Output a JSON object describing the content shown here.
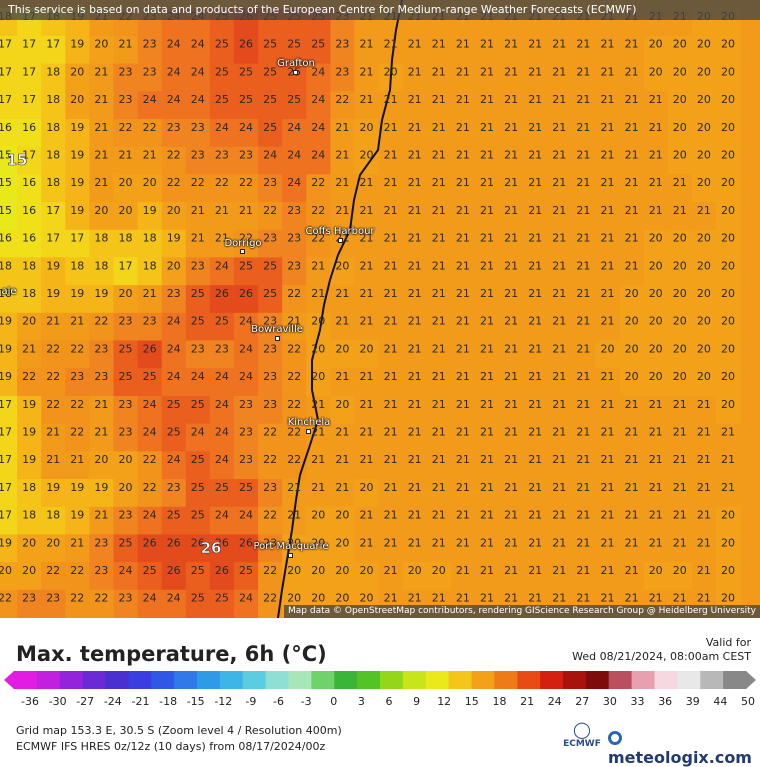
{
  "notice": "This service is based on data and products of the European Centre for Medium-range Weather Forecasts (ECMWF)",
  "attribution": "Map data © OpenStreetMap contributors, rendering GIScience Research Group @ Heidelberg University",
  "title": "Max. temperature, 6h (°C)",
  "valid_label": "Valid for",
  "valid_time": "Wed 08/21/2024, 08:00am CEST",
  "info_line1": "Grid map 153.3 E, 30.5 S (Zoom level 4 / Resolution 400m)",
  "info_line2": "ECMWF IFS HRES 0z/12z (10 days) from 08/17/2024/00z",
  "ecmwf_label": "ECMWF",
  "brand": "meteologix.com",
  "left_edge_label": "ale",
  "cities": [
    {
      "name": "Grafton"
    },
    {
      "name": "Dorrigo"
    },
    {
      "name": "Coffs Harbour"
    },
    {
      "name": "Bowraville"
    },
    {
      "name": "Kinchela"
    },
    {
      "name": "Port Macquarie"
    }
  ],
  "highlight_values": {
    "left": "15",
    "bottom": "26"
  },
  "legend": {
    "ticks": [
      "-36",
      "-30",
      "-27",
      "-24",
      "-21",
      "-18",
      "-15",
      "-12",
      "-9",
      "-6",
      "-3",
      "0",
      "3",
      "6",
      "9",
      "12",
      "15",
      "18",
      "21",
      "24",
      "27",
      "30",
      "33",
      "36",
      "39",
      "44",
      "50"
    ],
    "colors": [
      "#e31ce3",
      "#c31fe0",
      "#9424db",
      "#6c29d6",
      "#4a2fd1",
      "#3a3ee0",
      "#2f58e6",
      "#2f7ae8",
      "#2f9ae8",
      "#3db5e6",
      "#5ccde0",
      "#8fdfd4",
      "#a7e6b7",
      "#6fd26a",
      "#3ab53a",
      "#52c426",
      "#93d61a",
      "#c7e51a",
      "#eaea1a",
      "#f5c61a",
      "#f2a11a",
      "#ef7a18",
      "#e84c14",
      "#d3200f",
      "#a8140c",
      "#7f0c0c",
      "#b8505f",
      "#e8a0b0",
      "#f8d8e0",
      "#e8e8e8",
      "#b8b8b8",
      "#888888"
    ]
  },
  "grid": {
    "rows": [
      [
        18,
        17,
        18,
        19,
        21,
        22,
        23,
        24,
        24,
        25,
        26,
        25,
        25,
        25,
        23,
        21,
        21,
        21,
        21,
        21,
        21,
        21,
        21,
        21,
        21,
        21,
        21,
        21,
        21,
        20,
        20
      ],
      [
        17,
        17,
        17,
        19,
        20,
        21,
        23,
        24,
        24,
        25,
        26,
        25,
        25,
        25,
        23,
        21,
        21,
        21,
        21,
        21,
        21,
        21,
        21,
        21,
        21,
        21,
        21,
        20,
        20,
        20,
        20
      ],
      [
        17,
        17,
        18,
        20,
        21,
        23,
        23,
        24,
        24,
        25,
        25,
        25,
        25,
        24,
        23,
        21,
        20,
        21,
        21,
        21,
        21,
        21,
        21,
        21,
        21,
        21,
        21,
        20,
        20,
        20,
        20
      ],
      [
        17,
        17,
        18,
        20,
        21,
        23,
        24,
        24,
        24,
        25,
        25,
        25,
        25,
        24,
        22,
        21,
        21,
        21,
        21,
        21,
        21,
        21,
        21,
        21,
        21,
        21,
        21,
        21,
        20,
        20,
        20
      ],
      [
        16,
        16,
        18,
        19,
        21,
        22,
        22,
        23,
        23,
        24,
        24,
        25,
        24,
        24,
        21,
        20,
        21,
        21,
        21,
        21,
        21,
        21,
        21,
        21,
        21,
        21,
        21,
        21,
        20,
        20,
        20
      ],
      [
        15,
        17,
        18,
        19,
        21,
        21,
        21,
        22,
        23,
        23,
        23,
        24,
        24,
        24,
        21,
        20,
        21,
        21,
        21,
        21,
        21,
        21,
        21,
        21,
        21,
        21,
        21,
        21,
        20,
        20,
        20
      ],
      [
        15,
        16,
        18,
        19,
        21,
        20,
        20,
        22,
        22,
        22,
        22,
        23,
        24,
        22,
        21,
        21,
        21,
        21,
        21,
        21,
        21,
        21,
        21,
        21,
        21,
        21,
        21,
        21,
        21,
        20,
        20
      ],
      [
        15,
        16,
        17,
        19,
        20,
        20,
        19,
        20,
        21,
        21,
        21,
        22,
        23,
        22,
        21,
        21,
        21,
        21,
        21,
        21,
        21,
        21,
        21,
        21,
        21,
        21,
        21,
        21,
        21,
        21,
        20
      ],
      [
        16,
        16,
        17,
        17,
        18,
        18,
        18,
        19,
        21,
        21,
        22,
        23,
        23,
        22,
        21,
        21,
        21,
        21,
        21,
        21,
        21,
        21,
        21,
        21,
        21,
        21,
        21,
        20,
        20,
        20,
        20
      ],
      [
        18,
        18,
        19,
        18,
        18,
        17,
        18,
        20,
        23,
        24,
        25,
        25,
        23,
        21,
        20,
        21,
        21,
        21,
        21,
        21,
        21,
        21,
        21,
        21,
        21,
        21,
        21,
        20,
        20,
        20,
        20
      ],
      [
        18,
        18,
        19,
        19,
        19,
        20,
        21,
        23,
        25,
        26,
        26,
        25,
        22,
        21,
        21,
        21,
        21,
        21,
        21,
        21,
        21,
        21,
        21,
        21,
        21,
        21,
        20,
        20,
        20,
        20,
        20
      ],
      [
        19,
        20,
        21,
        21,
        22,
        23,
        23,
        24,
        25,
        25,
        24,
        23,
        21,
        20,
        21,
        21,
        21,
        21,
        21,
        21,
        21,
        21,
        21,
        21,
        21,
        21,
        20,
        20,
        20,
        20,
        20
      ],
      [
        19,
        21,
        22,
        22,
        23,
        25,
        26,
        24,
        23,
        23,
        24,
        23,
        22,
        20,
        20,
        20,
        21,
        21,
        21,
        21,
        21,
        21,
        21,
        21,
        21,
        20,
        20,
        20,
        20,
        20,
        20
      ],
      [
        19,
        22,
        22,
        23,
        23,
        25,
        25,
        24,
        24,
        24,
        24,
        23,
        22,
        20,
        21,
        21,
        21,
        21,
        21,
        21,
        21,
        21,
        21,
        21,
        21,
        21,
        20,
        20,
        20,
        20,
        20
      ],
      [
        17,
        19,
        22,
        22,
        21,
        23,
        24,
        25,
        25,
        24,
        23,
        23,
        22,
        21,
        20,
        21,
        21,
        21,
        21,
        21,
        21,
        21,
        21,
        21,
        21,
        21,
        21,
        21,
        21,
        21,
        20
      ],
      [
        17,
        19,
        21,
        22,
        21,
        23,
        24,
        25,
        24,
        24,
        23,
        22,
        22,
        21,
        21,
        21,
        21,
        21,
        21,
        21,
        21,
        21,
        21,
        21,
        21,
        21,
        21,
        21,
        21,
        21,
        21
      ],
      [
        17,
        19,
        21,
        21,
        20,
        20,
        22,
        24,
        25,
        24,
        23,
        22,
        22,
        21,
        21,
        21,
        21,
        21,
        21,
        21,
        21,
        21,
        21,
        21,
        21,
        21,
        21,
        21,
        21,
        21,
        21
      ],
      [
        17,
        18,
        19,
        19,
        19,
        20,
        22,
        23,
        25,
        25,
        25,
        23,
        21,
        21,
        21,
        20,
        21,
        21,
        21,
        21,
        21,
        21,
        21,
        21,
        21,
        21,
        21,
        21,
        21,
        21,
        21
      ],
      [
        17,
        18,
        18,
        19,
        21,
        23,
        24,
        25,
        25,
        24,
        24,
        22,
        21,
        20,
        20,
        21,
        21,
        21,
        21,
        21,
        21,
        21,
        21,
        21,
        21,
        21,
        21,
        21,
        21,
        21,
        20
      ],
      [
        19,
        20,
        20,
        21,
        23,
        25,
        26,
        26,
        26,
        26,
        26,
        23,
        20,
        20,
        20,
        21,
        21,
        21,
        21,
        21,
        21,
        21,
        21,
        21,
        21,
        21,
        21,
        21,
        21,
        21,
        20
      ],
      [
        20,
        20,
        22,
        22,
        23,
        24,
        25,
        26,
        25,
        26,
        25,
        22,
        20,
        20,
        20,
        20,
        21,
        20,
        20,
        21,
        21,
        21,
        21,
        21,
        21,
        21,
        21,
        20,
        20,
        21,
        20
      ],
      [
        22,
        23,
        23,
        22,
        22,
        23,
        24,
        24,
        25,
        25,
        24,
        22,
        20,
        20,
        20,
        20,
        21,
        21,
        21,
        21,
        21,
        21,
        21,
        21,
        21,
        21,
        21,
        21,
        21,
        21,
        20
      ]
    ]
  }
}
